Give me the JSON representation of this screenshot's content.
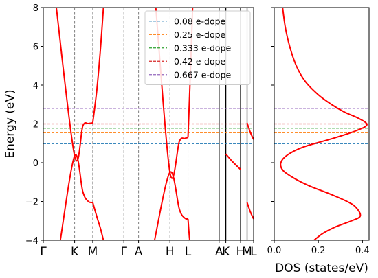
{
  "chart_data": [
    {
      "type": "line",
      "panel": "band-structure",
      "ylabel": "Energy (eV)",
      "ylim": [
        -4,
        8
      ],
      "yticks": [
        -4,
        -2,
        0,
        2,
        4,
        6,
        8
      ],
      "ytick_labels": [
        "−4",
        "−2",
        "0",
        "2",
        "4",
        "6",
        "8"
      ],
      "k_points": [
        {
          "label": "Γ",
          "x": 0.0
        },
        {
          "label": "K",
          "x": 0.149
        },
        {
          "label": "M",
          "x": 0.235
        },
        {
          "label": "Γ",
          "x": 0.383
        },
        {
          "label": "A",
          "x": 0.453
        },
        {
          "label": "H",
          "x": 0.602
        },
        {
          "label": "L",
          "x": 0.688
        },
        {
          "label": "A",
          "x": 0.836
        },
        {
          "label": "K",
          "x": 0.868
        },
        {
          "label": "H",
          "x": 0.938
        },
        {
          "label": "M",
          "x": 0.969
        },
        {
          "label": "L",
          "x": 1.0
        }
      ],
      "k_lines": [
        {
          "x": 0.149,
          "style": "dashed"
        },
        {
          "x": 0.235,
          "style": "dashed"
        },
        {
          "x": 0.383,
          "style": "dashed"
        },
        {
          "x": 0.453,
          "style": "dashed"
        },
        {
          "x": 0.602,
          "style": "dashed"
        },
        {
          "x": 0.688,
          "style": "dashed"
        },
        {
          "x": 0.836,
          "style": "solid"
        },
        {
          "x": 0.868,
          "style": "solid"
        },
        {
          "x": 0.938,
          "style": "solid"
        },
        {
          "x": 0.969,
          "style": "solid"
        }
      ],
      "doping_levels": [
        {
          "name": "0.08 e-dope",
          "energy": 0.98,
          "color": "#1f77b4"
        },
        {
          "name": "0.25 e-dope",
          "energy": 1.55,
          "color": "#ff7f0e"
        },
        {
          "name": "0.333 e-dope",
          "energy": 1.78,
          "color": "#2ca02c"
        },
        {
          "name": "0.42 e-dope",
          "energy": 2.0,
          "color": "#d62728"
        },
        {
          "name": "0.667 e-dope",
          "energy": 2.8,
          "color": "#9467bd"
        }
      ],
      "legend_position": "top-right",
      "band_color": "#ff0000",
      "bands": [
        {
          "x": [
            0.062,
            0.149,
            0.188,
            0.214,
            0.235
          ],
          "y": [
            8.0,
            0.35,
            1.9,
            2.02,
            2.05
          ]
        },
        {
          "x": [
            0.235,
            0.255,
            0.272,
            0.286
          ],
          "y": [
            2.05,
            3.8,
            5.9,
            8.0
          ]
        },
        {
          "x": [
            0.081,
            0.149,
            0.188,
            0.214,
            0.235
          ],
          "y": [
            -4.0,
            0.35,
            -1.5,
            -2.0,
            -2.05
          ]
        },
        {
          "x": [
            0.235,
            0.255,
            0.272,
            0.286
          ],
          "y": [
            -2.05,
            -2.8,
            -3.4,
            -4.0
          ]
        },
        {
          "x": [
            0.529,
            0.602,
            0.647,
            0.672,
            0.688
          ],
          "y": [
            -4.0,
            -0.5,
            -2.4,
            -2.85,
            -2.9
          ]
        },
        {
          "x": [
            0.688,
            0.692,
            0.696
          ],
          "y": [
            -2.9,
            -3.5,
            -4.0
          ]
        },
        {
          "x": [
            0.535,
            0.602,
            0.647,
            0.672,
            0.688
          ],
          "y": [
            8.0,
            -0.5,
            1.1,
            1.25,
            1.3
          ]
        },
        {
          "x": [
            0.688,
            0.7,
            0.71
          ],
          "y": [
            1.3,
            4.8,
            8.0
          ]
        },
        {
          "x": [
            0.868,
            0.9,
            0.938
          ],
          "y": [
            0.45,
            0.05,
            -0.35
          ]
        },
        {
          "x": [
            0.969,
            0.985,
            1.0
          ],
          "y": [
            2.05,
            1.55,
            1.2
          ]
        },
        {
          "x": [
            0.969,
            0.985,
            1.0
          ],
          "y": [
            -2.05,
            -2.55,
            -2.9
          ]
        }
      ]
    },
    {
      "type": "line",
      "panel": "dos",
      "xlabel": "DOS (states/eV)",
      "xlim": [
        0.0,
        0.43
      ],
      "xticks": [
        0.0,
        0.2,
        0.4
      ],
      "xtick_labels": [
        "0.0",
        "0.2",
        "0.4"
      ],
      "ylim": [
        -4,
        8
      ],
      "series": [
        {
          "color": "#ff0000",
          "x": [
            0.038,
            0.05,
            0.07,
            0.1,
            0.14,
            0.2,
            0.26,
            0.32,
            0.38,
            0.42,
            0.36,
            0.25,
            0.13,
            0.06,
            0.03,
            0.04,
            0.09,
            0.16,
            0.25,
            0.33,
            0.37,
            0.39,
            0.35,
            0.28,
            0.22,
            0.18
          ],
          "y": [
            8.0,
            7.0,
            6.0,
            5.0,
            4.2,
            3.5,
            3.0,
            2.6,
            2.3,
            1.95,
            1.6,
            1.2,
            0.8,
            0.4,
            0.0,
            -0.4,
            -0.8,
            -1.2,
            -1.6,
            -2.0,
            -2.3,
            -2.75,
            -3.0,
            -3.3,
            -3.65,
            -4.0
          ]
        }
      ],
      "doping_levels_energy": [
        0.98,
        1.55,
        1.78,
        2.0,
        2.8
      ]
    }
  ]
}
